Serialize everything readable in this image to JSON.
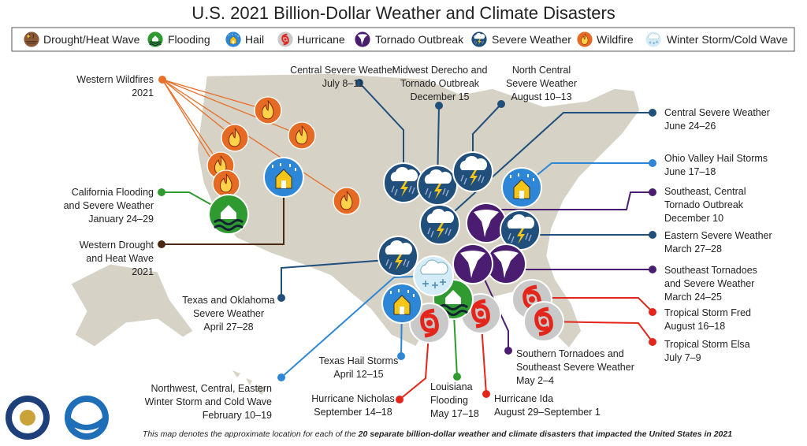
{
  "title": "U.S. 2021 Billion-Dollar Weather and Climate Disasters",
  "legend": [
    "Drought/Heat Wave",
    "Flooding",
    "Hail",
    "Hurricane",
    "Tornado Outbreak",
    "Severe Weather",
    "Wildfire",
    "Winter Storm/Cold Wave"
  ],
  "events": [
    {
      "lines": [
        "Western Wildfires",
        "2021"
      ]
    },
    {
      "lines": [
        "California Flooding",
        "and Severe Weather",
        "January 24–29"
      ]
    },
    {
      "lines": [
        "Western Drought",
        "and Heat Wave",
        "2021"
      ]
    },
    {
      "lines": [
        "Central Severe Weather",
        "July 8–11"
      ]
    },
    {
      "lines": [
        "Midwest Derecho and",
        "Tornado Outbreak",
        "December 15"
      ]
    },
    {
      "lines": [
        "North Central",
        "Severe Weather",
        "August 10–13"
      ]
    },
    {
      "lines": [
        "Central Severe Weather",
        "June 24–26"
      ]
    },
    {
      "lines": [
        "Ohio Valley Hail Storms",
        "June 17–18"
      ]
    },
    {
      "lines": [
        "Southeast, Central",
        "Tornado Outbreak",
        "December 10"
      ]
    },
    {
      "lines": [
        "Eastern Severe Weather",
        "March 27–28"
      ]
    },
    {
      "lines": [
        "Southeast Tornadoes",
        "and Severe Weather",
        "March 24–25"
      ]
    },
    {
      "lines": [
        "Tropical Storm Fred",
        "August 16–18"
      ]
    },
    {
      "lines": [
        "Tropical Storm Elsa",
        "July 7–9"
      ]
    },
    {
      "lines": [
        "Southern Tornadoes and",
        "Southeast Severe Weather",
        "May 2–4"
      ]
    },
    {
      "lines": [
        "Hurricane Ida",
        "August 29–September 1"
      ]
    },
    {
      "lines": [
        "Louisiana",
        "Flooding",
        "May 17–18"
      ]
    },
    {
      "lines": [
        "Hurricane Nicholas",
        "September 14–18"
      ]
    },
    {
      "lines": [
        "Texas Hail Storms",
        "April 12–15"
      ]
    },
    {
      "lines": [
        "Texas and Oklahoma",
        "Severe Weather",
        "April 27–28"
      ]
    },
    {
      "lines": [
        "Northwest, Central, Eastern",
        "Winter Storm and Cold Wave",
        "February 10–19"
      ]
    }
  ],
  "footer": {
    "text": "This map denotes the approximate location for each of the",
    "bold": "20 separate billion-dollar weather and climate disasters that impacted the United States in 2021"
  }
}
